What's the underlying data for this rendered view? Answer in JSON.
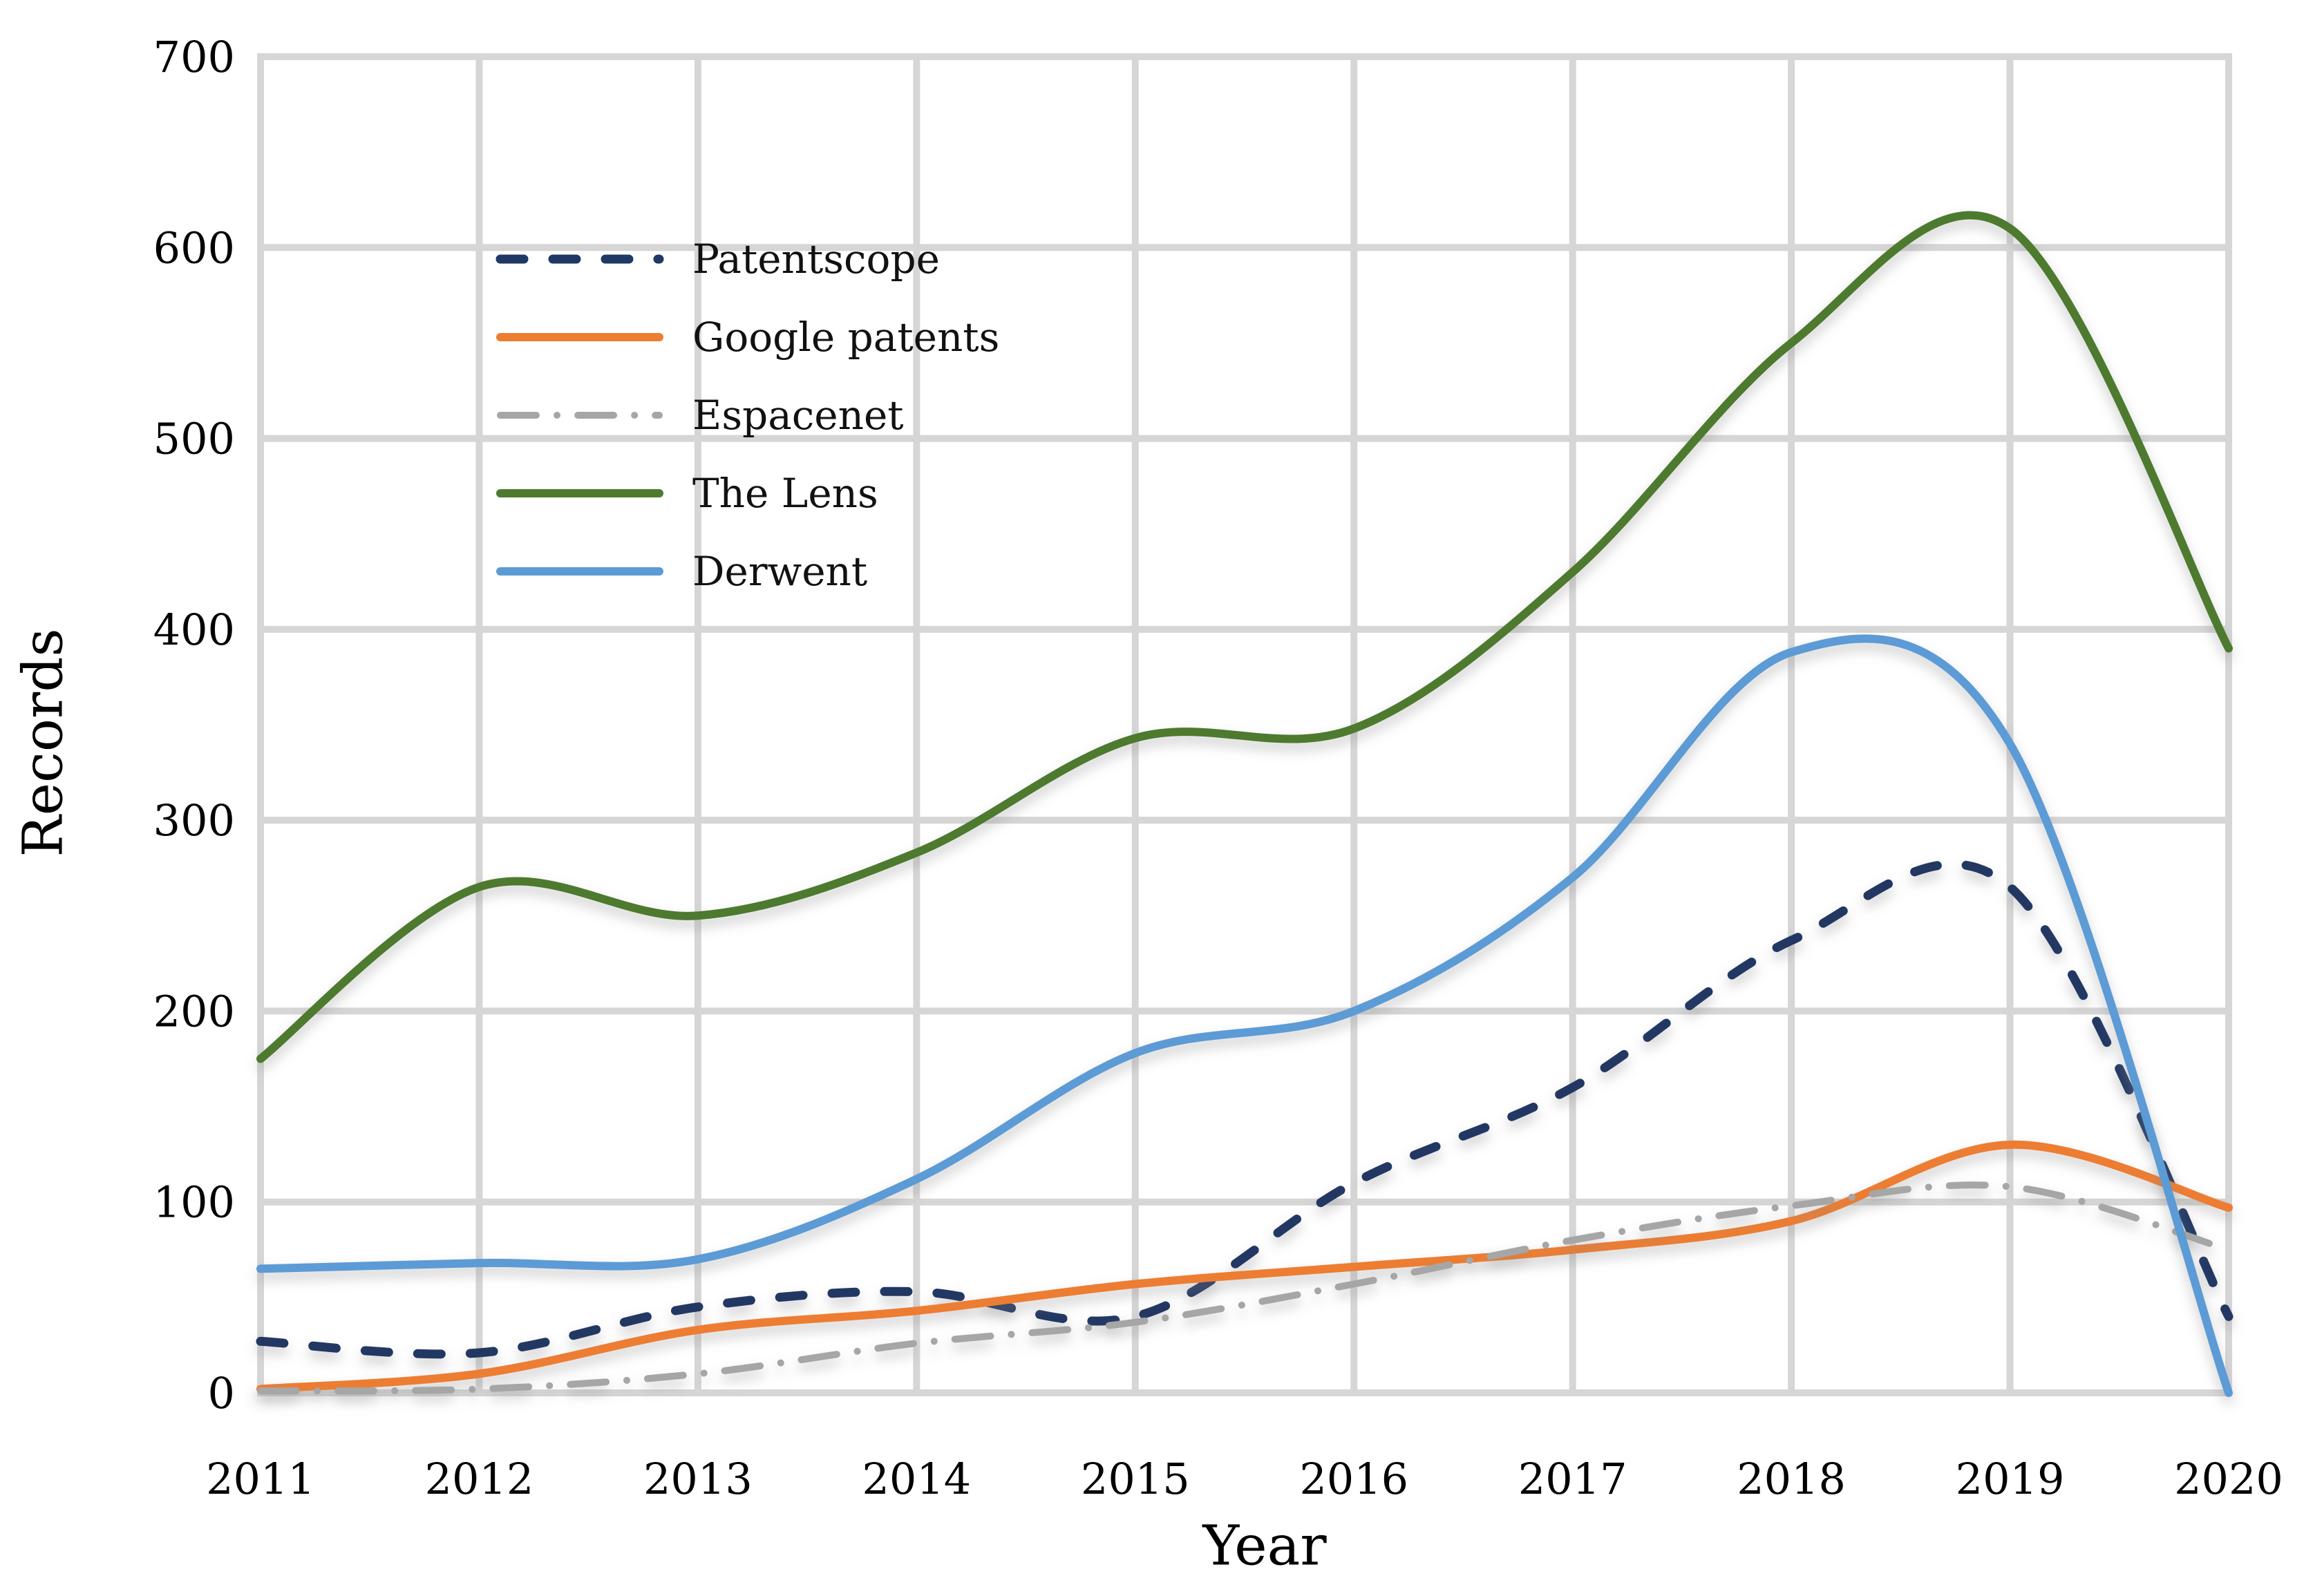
{
  "chart_data": {
    "type": "line",
    "x": [
      2011,
      2012,
      2013,
      2014,
      2015,
      2016,
      2017,
      2018,
      2019,
      2020
    ],
    "series": [
      {
        "name": "Patentscope",
        "style": "dashed",
        "color": "#203864",
        "values": [
          27,
          21,
          45,
          53,
          40,
          110,
          160,
          237,
          265,
          40
        ]
      },
      {
        "name": "Google patents",
        "style": "solid",
        "color": "#ED7D31",
        "values": [
          2,
          10,
          33,
          43,
          57,
          66,
          75,
          90,
          130,
          97
        ]
      },
      {
        "name": "Espacenet",
        "style": "dashdot",
        "color": "#A6A6A6",
        "values": [
          1,
          2,
          10,
          26,
          37,
          57,
          80,
          98,
          108,
          75
        ]
      },
      {
        "name": "The Lens",
        "style": "solid",
        "color": "#4E7A2E",
        "values": [
          175,
          265,
          250,
          283,
          343,
          348,
          430,
          550,
          610,
          390
        ]
      },
      {
        "name": "Derwent",
        "style": "solid",
        "color": "#5B9BD5",
        "values": [
          65,
          68,
          70,
          112,
          178,
          200,
          270,
          388,
          340,
          0
        ]
      }
    ],
    "xlabel": "Year",
    "ylabel": "Records",
    "ylim": [
      0,
      700
    ],
    "yticks": [
      0,
      100,
      200,
      300,
      400,
      500,
      600,
      700
    ],
    "grid": true,
    "legend_position": "upper-left-inside"
  },
  "colors": {
    "background": "#FFFFFF",
    "gridline": "#D6D6D6",
    "tick_text": "#000000"
  }
}
